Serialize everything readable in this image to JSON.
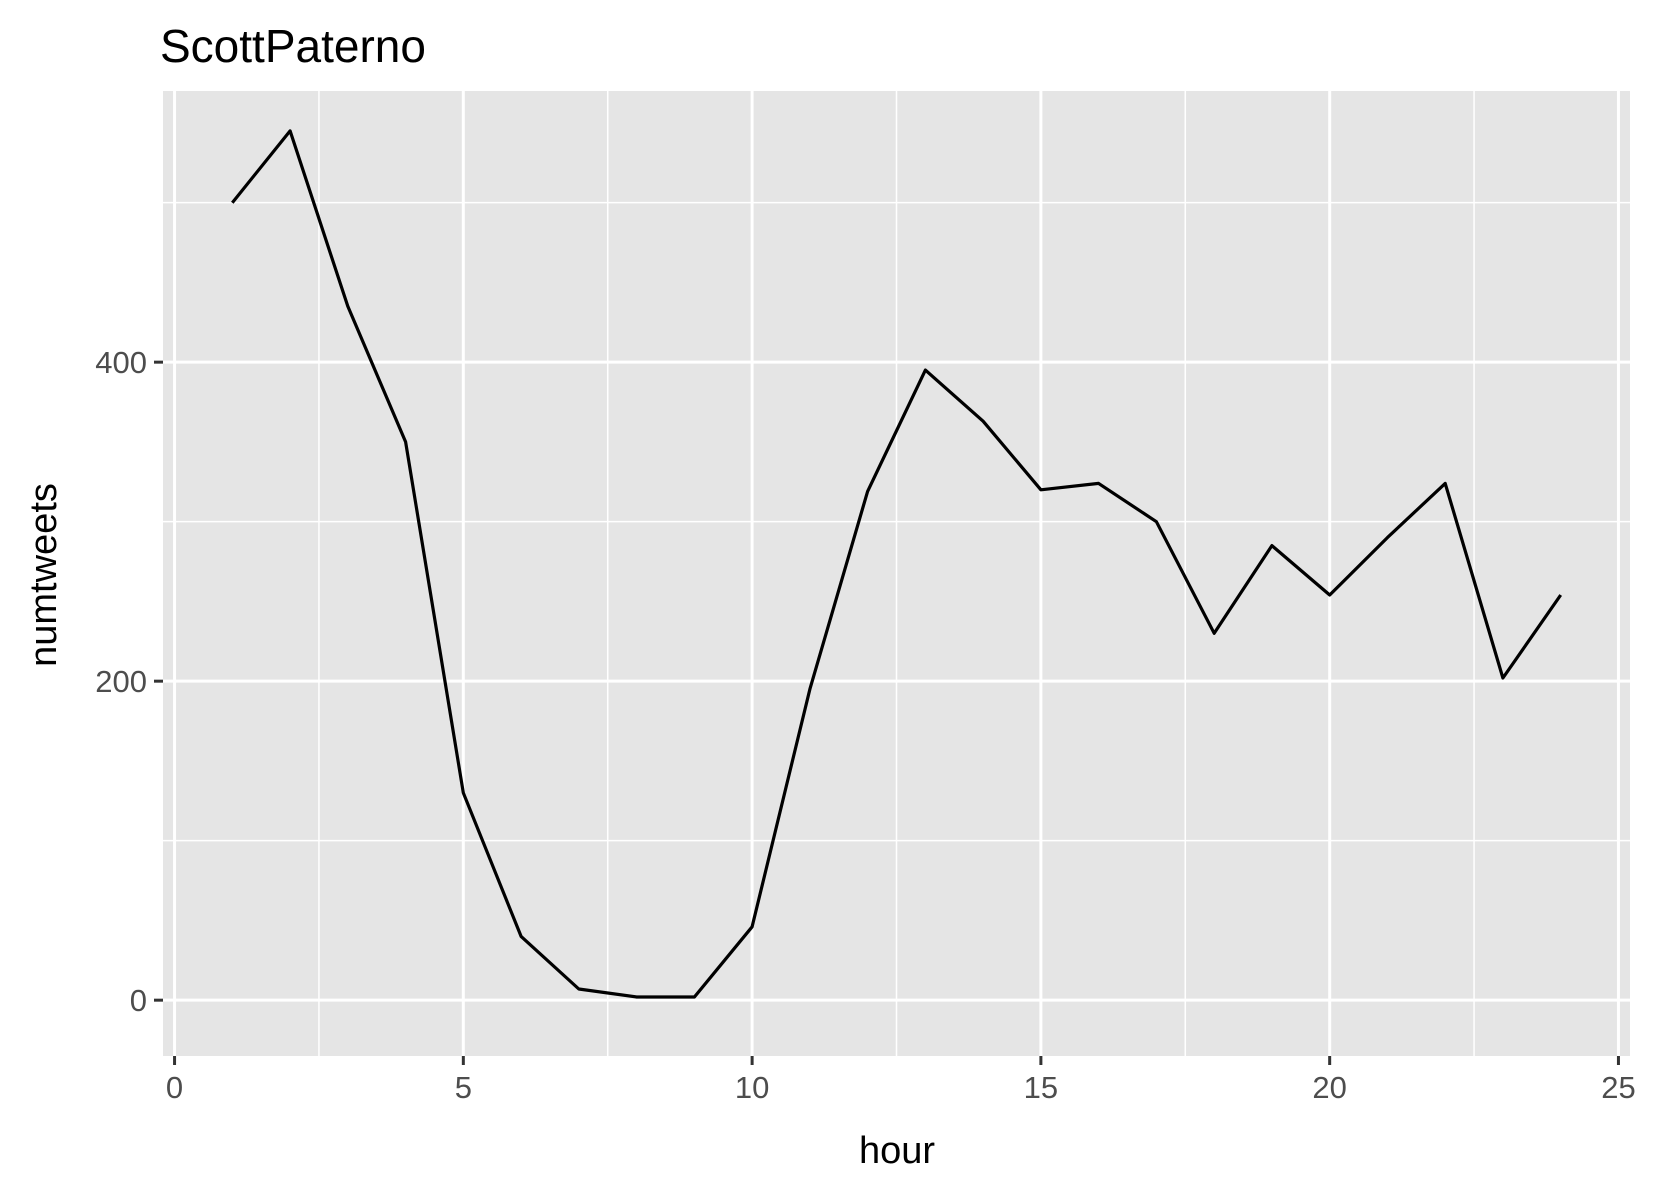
{
  "chart_data": {
    "type": "line",
    "title": "ScottPaterno",
    "xlabel": "hour",
    "ylabel": "numtweets",
    "xlim": [
      -0.2,
      25.2
    ],
    "ylim": [
      -35,
      570
    ],
    "x_ticks": [
      0,
      5,
      10,
      15,
      20,
      25
    ],
    "y_ticks": [
      0,
      200,
      400
    ],
    "x_minor_ticks": [
      2.5,
      7.5,
      12.5,
      17.5,
      22.5
    ],
    "y_minor_ticks": [
      100,
      300,
      500
    ],
    "grid": true,
    "legend": "none",
    "colors": {
      "panel_background": "#e5e5e5",
      "grid_line": "#ffffff",
      "line": "#000000",
      "tick_mark": "#333333",
      "tick_label": "#4d4d4d"
    },
    "series": [
      {
        "x": [
          1,
          2,
          3,
          4,
          5,
          6,
          7,
          8,
          9,
          10,
          11,
          12,
          13,
          14,
          15,
          16,
          17,
          18,
          19,
          20,
          21,
          22,
          23,
          24
        ],
        "values": [
          500,
          545,
          435,
          350,
          130,
          40,
          7,
          2,
          2,
          46,
          195,
          319,
          395,
          363,
          320,
          324,
          300,
          230,
          285,
          254,
          290,
          324,
          202,
          254
        ]
      }
    ]
  }
}
